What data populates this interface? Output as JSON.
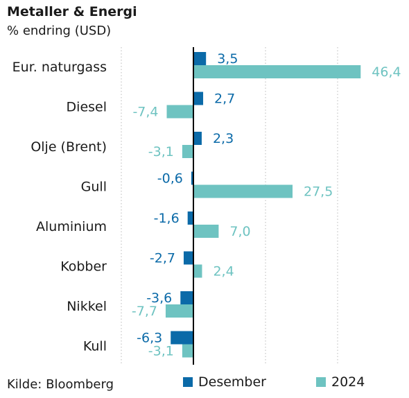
{
  "title": "Metaller & Energi",
  "subtitle": "% endring (USD)",
  "source": "Kilde: Bloomberg",
  "colors": {
    "desember": "#0b6aa8",
    "y2024": "#6ec3c1",
    "axis": "#000000",
    "grid": "#b8b8b8"
  },
  "chart_data": {
    "type": "bar",
    "orientation": "horizontal",
    "categories": [
      "Eur. naturgass",
      "Diesel",
      "Olje (Brent)",
      "Gull",
      "Aluminium",
      "Kobber",
      "Nikkel",
      "Kull"
    ],
    "series": [
      {
        "name": "Desember",
        "values": [
          3.5,
          2.7,
          2.3,
          -0.6,
          -1.6,
          -2.7,
          -3.6,
          -6.3
        ],
        "labels": [
          "3,5",
          "2,7",
          "2,3",
          "-0,6",
          "-1,6",
          "-2,7",
          "-3,6",
          "-6,3"
        ]
      },
      {
        "name": "2024",
        "values": [
          46.4,
          -7.4,
          -3.1,
          27.5,
          7.0,
          2.4,
          -7.7,
          -3.1
        ],
        "labels": [
          "46,4",
          "-7,4",
          "-3,1",
          "27,5",
          "7,0",
          "2,4",
          "-7,7",
          "-3,1"
        ]
      }
    ],
    "xlim": [
      -20,
      60
    ],
    "gridlines": [
      -20,
      20,
      40,
      60
    ],
    "grid": true,
    "legend": "bottom"
  }
}
